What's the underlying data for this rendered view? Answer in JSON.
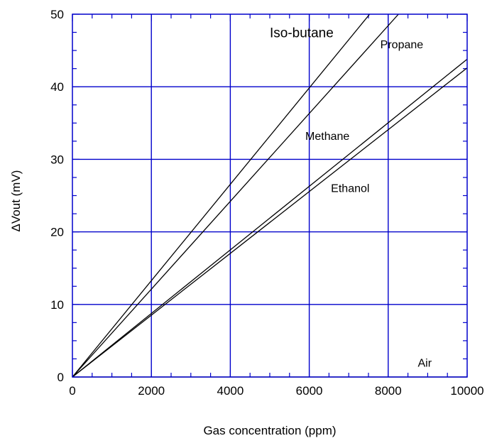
{
  "chart_data": {
    "type": "line",
    "title": "",
    "xlabel": "Gas concentration (ppm)",
    "ylabel": "ΔVout (mV)",
    "xlim": [
      0,
      10000
    ],
    "ylim": [
      0,
      50
    ],
    "x_ticks": [
      "0",
      "2000",
      "4000",
      "6000",
      "8000",
      "10000"
    ],
    "y_ticks": [
      "0",
      "10",
      "20",
      "30",
      "40",
      "50"
    ],
    "grid": true,
    "legend": "none",
    "colors": {
      "grid": "#0000cc",
      "lines": "#000000"
    },
    "series": [
      {
        "name": "Iso-butane",
        "x": [
          0,
          7530
        ],
        "y": [
          0,
          50
        ]
      },
      {
        "name": "Propane",
        "x": [
          0,
          8260
        ],
        "y": [
          0,
          50
        ]
      },
      {
        "name": "Methane",
        "x": [
          0,
          10000
        ],
        "y": [
          0,
          43.8
        ]
      },
      {
        "name": "Ethanol",
        "x": [
          0,
          10000
        ],
        "y": [
          0,
          42.6
        ]
      },
      {
        "name": "Air",
        "x": [
          0,
          10000
        ],
        "y": [
          0,
          0
        ]
      }
    ]
  }
}
